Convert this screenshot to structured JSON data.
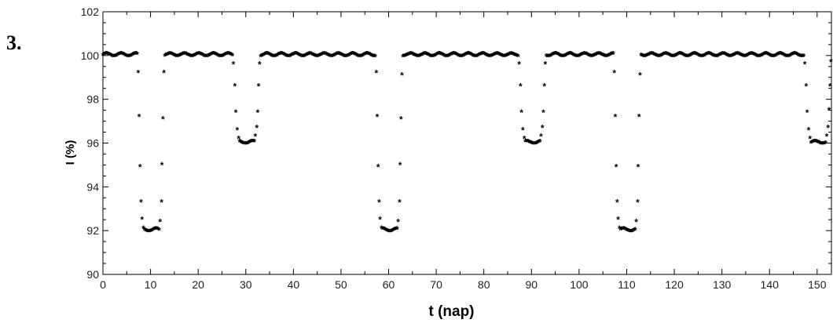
{
  "problem_number": "3.",
  "chart_data": {
    "type": "scatter",
    "marker": "*",
    "color": "#000000",
    "xlabel": "t (nap)",
    "ylabel": "I (%)",
    "xlim": [
      0,
      153
    ],
    "ylim": [
      90,
      102
    ],
    "xticks": [
      0,
      10,
      20,
      30,
      40,
      50,
      60,
      70,
      80,
      90,
      100,
      110,
      120,
      130,
      140,
      150
    ],
    "yticks": [
      90,
      92,
      94,
      96,
      98,
      100,
      102
    ],
    "grid": false,
    "baseline": 100,
    "series": [
      {
        "points": [
          [
            7.4,
            99.2
          ],
          [
            7.6,
            97.2
          ],
          [
            7.8,
            94.9
          ],
          [
            8.0,
            93.3
          ],
          [
            8.2,
            92.5
          ],
          [
            8.5,
            92.1
          ],
          [
            12.0,
            92.4
          ],
          [
            12.3,
            93.3
          ],
          [
            12.4,
            95.0
          ],
          [
            12.6,
            97.1
          ],
          [
            12.8,
            99.2
          ],
          [
            27.4,
            99.6
          ],
          [
            27.7,
            98.6
          ],
          [
            27.9,
            97.4
          ],
          [
            28.2,
            96.6
          ],
          [
            28.5,
            96.2
          ],
          [
            32.0,
            96.3
          ],
          [
            32.3,
            96.7
          ],
          [
            32.5,
            97.4
          ],
          [
            32.7,
            98.6
          ],
          [
            32.9,
            99.6
          ],
          [
            57.4,
            99.2
          ],
          [
            57.6,
            97.2
          ],
          [
            57.8,
            94.9
          ],
          [
            58.0,
            93.3
          ],
          [
            58.2,
            92.5
          ],
          [
            58.5,
            92.1
          ],
          [
            62.0,
            92.4
          ],
          [
            62.3,
            93.3
          ],
          [
            62.4,
            95.0
          ],
          [
            62.6,
            97.1
          ],
          [
            62.8,
            99.1
          ],
          [
            87.4,
            99.6
          ],
          [
            87.7,
            98.6
          ],
          [
            87.9,
            97.4
          ],
          [
            88.2,
            96.6
          ],
          [
            88.5,
            96.2
          ],
          [
            92.0,
            96.3
          ],
          [
            92.3,
            96.7
          ],
          [
            92.5,
            97.4
          ],
          [
            92.7,
            98.6
          ],
          [
            92.9,
            99.6
          ],
          [
            107.4,
            99.2
          ],
          [
            107.6,
            97.2
          ],
          [
            107.8,
            94.9
          ],
          [
            108.0,
            93.3
          ],
          [
            108.2,
            92.5
          ],
          [
            108.5,
            92.1
          ],
          [
            112.0,
            92.4
          ],
          [
            112.3,
            93.3
          ],
          [
            112.4,
            94.9
          ],
          [
            112.6,
            97.2
          ],
          [
            112.8,
            99.1
          ],
          [
            147.4,
            99.6
          ],
          [
            147.7,
            98.6
          ],
          [
            147.9,
            97.4
          ],
          [
            148.2,
            96.6
          ],
          [
            148.5,
            96.2
          ],
          [
            152.0,
            96.3
          ],
          [
            152.3,
            96.7
          ],
          [
            152.5,
            97.5
          ],
          [
            152.7,
            98.6
          ],
          [
            152.9,
            99.7
          ]
        ],
        "flat_segments": [
          {
            "x_start": 0,
            "x_end": 7.2,
            "y": 100,
            "count": 36
          },
          {
            "x_start": 8.7,
            "x_end": 11.8,
            "y": 92,
            "count": 16
          },
          {
            "x_start": 13.0,
            "x_end": 27.2,
            "y": 100,
            "count": 70
          },
          {
            "x_start": 28.7,
            "x_end": 31.8,
            "y": 96,
            "count": 16
          },
          {
            "x_start": 33.1,
            "x_end": 57.2,
            "y": 100,
            "count": 120
          },
          {
            "x_start": 58.7,
            "x_end": 61.8,
            "y": 92,
            "count": 16
          },
          {
            "x_start": 63.0,
            "x_end": 87.2,
            "y": 100,
            "count": 120
          },
          {
            "x_start": 88.7,
            "x_end": 91.8,
            "y": 96,
            "count": 16
          },
          {
            "x_start": 93.1,
            "x_end": 107.2,
            "y": 100,
            "count": 70
          },
          {
            "x_start": 108.7,
            "x_end": 111.8,
            "y": 92,
            "count": 16
          },
          {
            "x_start": 113.0,
            "x_end": 147.2,
            "y": 100,
            "count": 170
          },
          {
            "x_start": 148.7,
            "x_end": 151.8,
            "y": 96,
            "count": 16
          }
        ]
      }
    ]
  }
}
